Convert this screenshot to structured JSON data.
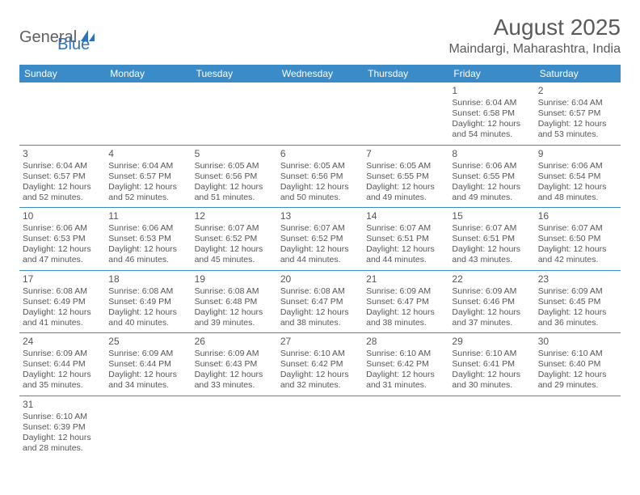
{
  "logo": {
    "general": "General",
    "blue": "Blue"
  },
  "title": "August 2025",
  "location": "Maindargi, Maharashtra, India",
  "colors": {
    "header_bg": "#3b8bc9",
    "header_text": "#ffffff",
    "body_text": "#555555",
    "logo_gray": "#5f5f5f",
    "logo_blue": "#2f72b8",
    "border": "#3b8bc9"
  },
  "day_headers": [
    "Sunday",
    "Monday",
    "Tuesday",
    "Wednesday",
    "Thursday",
    "Friday",
    "Saturday"
  ],
  "weeks": [
    [
      null,
      null,
      null,
      null,
      null,
      {
        "n": "1",
        "sr": "Sunrise: 6:04 AM",
        "ss": "Sunset: 6:58 PM",
        "dl": "Daylight: 12 hours and 54 minutes."
      },
      {
        "n": "2",
        "sr": "Sunrise: 6:04 AM",
        "ss": "Sunset: 6:57 PM",
        "dl": "Daylight: 12 hours and 53 minutes."
      }
    ],
    [
      {
        "n": "3",
        "sr": "Sunrise: 6:04 AM",
        "ss": "Sunset: 6:57 PM",
        "dl": "Daylight: 12 hours and 52 minutes."
      },
      {
        "n": "4",
        "sr": "Sunrise: 6:04 AM",
        "ss": "Sunset: 6:57 PM",
        "dl": "Daylight: 12 hours and 52 minutes."
      },
      {
        "n": "5",
        "sr": "Sunrise: 6:05 AM",
        "ss": "Sunset: 6:56 PM",
        "dl": "Daylight: 12 hours and 51 minutes."
      },
      {
        "n": "6",
        "sr": "Sunrise: 6:05 AM",
        "ss": "Sunset: 6:56 PM",
        "dl": "Daylight: 12 hours and 50 minutes."
      },
      {
        "n": "7",
        "sr": "Sunrise: 6:05 AM",
        "ss": "Sunset: 6:55 PM",
        "dl": "Daylight: 12 hours and 49 minutes."
      },
      {
        "n": "8",
        "sr": "Sunrise: 6:06 AM",
        "ss": "Sunset: 6:55 PM",
        "dl": "Daylight: 12 hours and 49 minutes."
      },
      {
        "n": "9",
        "sr": "Sunrise: 6:06 AM",
        "ss": "Sunset: 6:54 PM",
        "dl": "Daylight: 12 hours and 48 minutes."
      }
    ],
    [
      {
        "n": "10",
        "sr": "Sunrise: 6:06 AM",
        "ss": "Sunset: 6:53 PM",
        "dl": "Daylight: 12 hours and 47 minutes."
      },
      {
        "n": "11",
        "sr": "Sunrise: 6:06 AM",
        "ss": "Sunset: 6:53 PM",
        "dl": "Daylight: 12 hours and 46 minutes."
      },
      {
        "n": "12",
        "sr": "Sunrise: 6:07 AM",
        "ss": "Sunset: 6:52 PM",
        "dl": "Daylight: 12 hours and 45 minutes."
      },
      {
        "n": "13",
        "sr": "Sunrise: 6:07 AM",
        "ss": "Sunset: 6:52 PM",
        "dl": "Daylight: 12 hours and 44 minutes."
      },
      {
        "n": "14",
        "sr": "Sunrise: 6:07 AM",
        "ss": "Sunset: 6:51 PM",
        "dl": "Daylight: 12 hours and 44 minutes."
      },
      {
        "n": "15",
        "sr": "Sunrise: 6:07 AM",
        "ss": "Sunset: 6:51 PM",
        "dl": "Daylight: 12 hours and 43 minutes."
      },
      {
        "n": "16",
        "sr": "Sunrise: 6:07 AM",
        "ss": "Sunset: 6:50 PM",
        "dl": "Daylight: 12 hours and 42 minutes."
      }
    ],
    [
      {
        "n": "17",
        "sr": "Sunrise: 6:08 AM",
        "ss": "Sunset: 6:49 PM",
        "dl": "Daylight: 12 hours and 41 minutes."
      },
      {
        "n": "18",
        "sr": "Sunrise: 6:08 AM",
        "ss": "Sunset: 6:49 PM",
        "dl": "Daylight: 12 hours and 40 minutes."
      },
      {
        "n": "19",
        "sr": "Sunrise: 6:08 AM",
        "ss": "Sunset: 6:48 PM",
        "dl": "Daylight: 12 hours and 39 minutes."
      },
      {
        "n": "20",
        "sr": "Sunrise: 6:08 AM",
        "ss": "Sunset: 6:47 PM",
        "dl": "Daylight: 12 hours and 38 minutes."
      },
      {
        "n": "21",
        "sr": "Sunrise: 6:09 AM",
        "ss": "Sunset: 6:47 PM",
        "dl": "Daylight: 12 hours and 38 minutes."
      },
      {
        "n": "22",
        "sr": "Sunrise: 6:09 AM",
        "ss": "Sunset: 6:46 PM",
        "dl": "Daylight: 12 hours and 37 minutes."
      },
      {
        "n": "23",
        "sr": "Sunrise: 6:09 AM",
        "ss": "Sunset: 6:45 PM",
        "dl": "Daylight: 12 hours and 36 minutes."
      }
    ],
    [
      {
        "n": "24",
        "sr": "Sunrise: 6:09 AM",
        "ss": "Sunset: 6:44 PM",
        "dl": "Daylight: 12 hours and 35 minutes."
      },
      {
        "n": "25",
        "sr": "Sunrise: 6:09 AM",
        "ss": "Sunset: 6:44 PM",
        "dl": "Daylight: 12 hours and 34 minutes."
      },
      {
        "n": "26",
        "sr": "Sunrise: 6:09 AM",
        "ss": "Sunset: 6:43 PM",
        "dl": "Daylight: 12 hours and 33 minutes."
      },
      {
        "n": "27",
        "sr": "Sunrise: 6:10 AM",
        "ss": "Sunset: 6:42 PM",
        "dl": "Daylight: 12 hours and 32 minutes."
      },
      {
        "n": "28",
        "sr": "Sunrise: 6:10 AM",
        "ss": "Sunset: 6:42 PM",
        "dl": "Daylight: 12 hours and 31 minutes."
      },
      {
        "n": "29",
        "sr": "Sunrise: 6:10 AM",
        "ss": "Sunset: 6:41 PM",
        "dl": "Daylight: 12 hours and 30 minutes."
      },
      {
        "n": "30",
        "sr": "Sunrise: 6:10 AM",
        "ss": "Sunset: 6:40 PM",
        "dl": "Daylight: 12 hours and 29 minutes."
      }
    ],
    [
      {
        "n": "31",
        "sr": "Sunrise: 6:10 AM",
        "ss": "Sunset: 6:39 PM",
        "dl": "Daylight: 12 hours and 28 minutes."
      },
      null,
      null,
      null,
      null,
      null,
      null
    ]
  ]
}
